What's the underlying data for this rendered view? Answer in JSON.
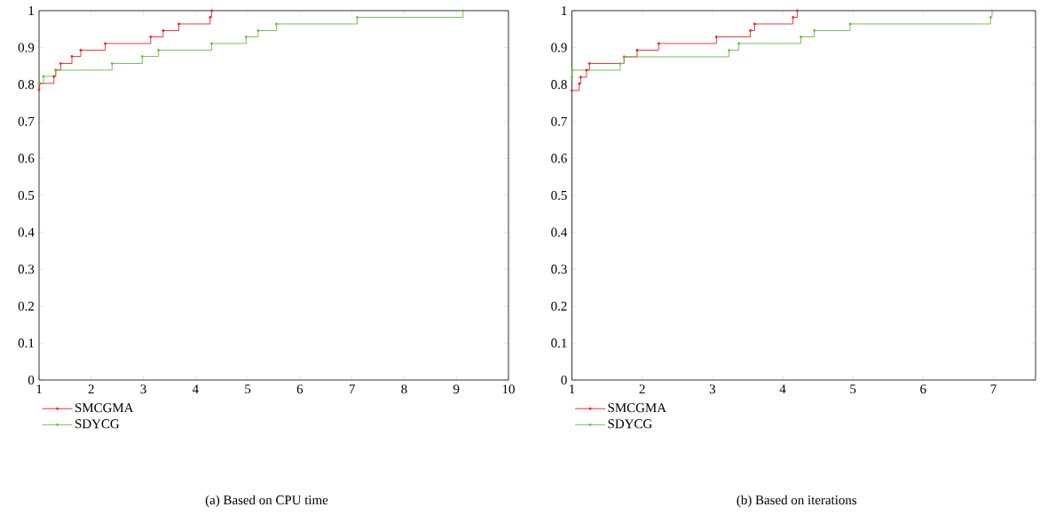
{
  "chart_data": [
    {
      "type": "step",
      "title": "(a)  Based on CPU time",
      "xlim": [
        1,
        10
      ],
      "ylim": [
        0,
        1
      ],
      "xticks": [
        1,
        2,
        3,
        4,
        5,
        6,
        7,
        8,
        9,
        10
      ],
      "yticks": [
        0,
        0.1,
        0.2,
        0.3,
        0.4,
        0.5,
        0.6,
        0.7,
        0.8,
        0.9,
        1
      ],
      "legend": "bottom left",
      "marker": "circle",
      "series": [
        {
          "name": "SMCGMA",
          "color": "#ee2020",
          "x": [
            1,
            1.01,
            1.285,
            1.32,
            1.415,
            1.63,
            1.8,
            2.27,
            3.14,
            3.38,
            3.68,
            4.28,
            4.31
          ],
          "values": [
            0.786,
            0.803,
            0.822,
            0.839,
            0.857,
            0.876,
            0.893,
            0.911,
            0.929,
            0.946,
            0.964,
            0.982,
            1.0
          ]
        },
        {
          "name": "SDYCG",
          "color": "#66bb44",
          "x": [
            1,
            1.085,
            1.32,
            2.4,
            2.98,
            3.29,
            4.31,
            4.97,
            5.2,
            5.55,
            7.1,
            9.13
          ],
          "values": [
            0.803,
            0.822,
            0.839,
            0.857,
            0.876,
            0.893,
            0.911,
            0.929,
            0.946,
            0.964,
            0.982,
            1.0
          ]
        }
      ]
    },
    {
      "type": "step",
      "title": "(b)  Based on iterations",
      "xlim": [
        1,
        7.6
      ],
      "ylim": [
        0,
        1
      ],
      "xticks": [
        1,
        2,
        3,
        4,
        5,
        6,
        7
      ],
      "yticks": [
        0,
        0.1,
        0.2,
        0.3,
        0.4,
        0.5,
        0.6,
        0.7,
        0.8,
        0.9,
        1
      ],
      "legend": "bottom left",
      "marker": "circle",
      "series": [
        {
          "name": "SMCGMA",
          "color": "#ee2020",
          "x": [
            1,
            1.104,
            1.125,
            1.208,
            1.25,
            1.742,
            1.928,
            2.235,
            3.056,
            3.54,
            3.6,
            4.147,
            4.21
          ],
          "values": [
            0.784,
            0.802,
            0.82,
            0.839,
            0.857,
            0.875,
            0.893,
            0.911,
            0.929,
            0.946,
            0.964,
            0.982,
            1.0
          ]
        },
        {
          "name": "SDYCG",
          "color": "#66bb44",
          "x": [
            1,
            1.005,
            1.688,
            1.742,
            3.237,
            3.376,
            4.26,
            4.45,
            4.96,
            6.96,
            6.98
          ],
          "values": [
            0.82,
            0.839,
            0.857,
            0.875,
            0.893,
            0.911,
            0.929,
            0.946,
            0.964,
            0.982,
            1.0
          ]
        }
      ]
    }
  ]
}
